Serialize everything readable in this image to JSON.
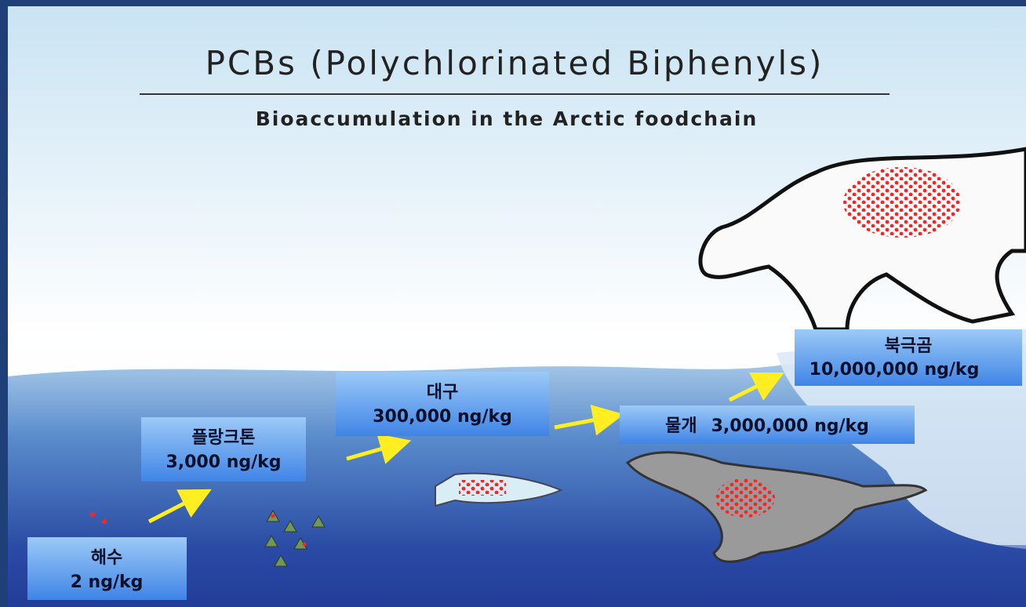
{
  "header": {
    "title": "PCBs (Polychlorinated Biphenyls)",
    "subtitle": "Bioaccumulation in the Arctic foodchain"
  },
  "stages": [
    {
      "label": "해수",
      "amount": "2 ng/kg"
    },
    {
      "label": "플랑크톤",
      "amount": "3,000 ng/kg"
    },
    {
      "label": "대구",
      "amount": "300,000 ng/kg"
    },
    {
      "label": "물개",
      "amount": "3,000,000 ng/kg"
    },
    {
      "label": "북극곰",
      "amount": "10,000,000 ng/kg"
    }
  ]
}
